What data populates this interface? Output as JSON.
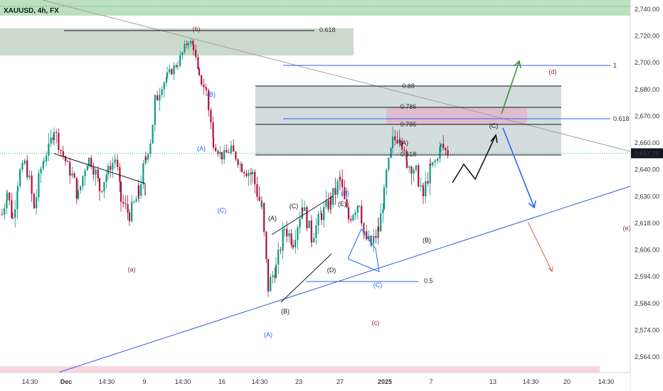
{
  "chart_data": {
    "type": "candlestick",
    "title": "XAUUSD, 4h, FX",
    "price_label": "2,652.28",
    "current_price": 2652.28,
    "ylim": [
      2556,
      2748
    ],
    "y_ticks": [
      {
        "value": 2740,
        "label": "2,740.00"
      },
      {
        "value": 2720,
        "label": "2,720.00"
      },
      {
        "value": 2700,
        "label": "2,700.00"
      },
      {
        "value": 2680,
        "label": "2,680.00"
      },
      {
        "value": 2670,
        "label": "2,670.00"
      },
      {
        "value": 2660,
        "label": "2,660.00"
      },
      {
        "value": 2640,
        "label": "2,640.00"
      },
      {
        "value": 2630,
        "label": "2,630.00"
      },
      {
        "value": 2618,
        "label": "2,618.00"
      },
      {
        "value": 2606,
        "label": "2,606.00"
      },
      {
        "value": 2594,
        "label": "2,594.00"
      },
      {
        "value": 2584,
        "label": "2,584.00"
      },
      {
        "value": 2574,
        "label": "2,574.00"
      },
      {
        "value": 2564,
        "label": "2,564.00"
      }
    ],
    "x_ticks": [
      "14:30",
      "Dec",
      "14:30",
      "9",
      "14:30",
      "16",
      "14:30",
      "23",
      "27",
      "2025",
      "7",
      "13",
      "14:30",
      "20",
      "14:30"
    ],
    "fib_labels": [
      "0.618",
      "1",
      "0.88",
      "0.786",
      "0.618",
      "0.786",
      "0.618",
      "0.5"
    ],
    "wave_labels": [
      "(b)",
      "(a)",
      "(c)",
      "(d)",
      "(e)",
      "(A)",
      "(B)",
      "(C)",
      "(A)",
      "(B)",
      "(C)",
      "(D)",
      "(E)",
      "(A)",
      "(B)",
      "(C)",
      "(A)",
      "(B)",
      "(C)"
    ],
    "colors": {
      "up": "#089981",
      "down": "#b0103a",
      "accent": "#2962ff",
      "label": "#8b2c3c"
    }
  }
}
